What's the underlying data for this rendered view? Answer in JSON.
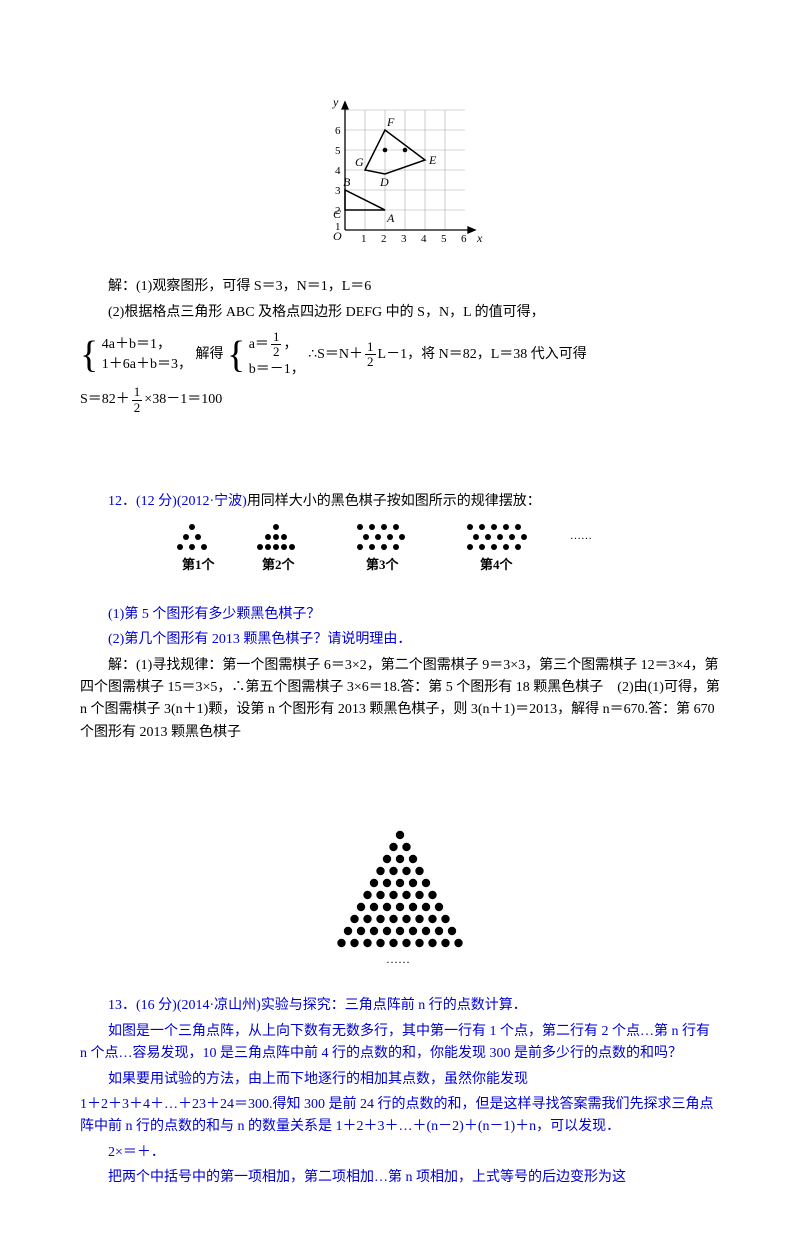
{
  "graph1": {
    "labels": {
      "y": "y",
      "x": "x",
      "O": "O",
      "A": "A",
      "B": "B",
      "C": "C",
      "D": "D",
      "E": "E",
      "F": "F",
      "G": "G"
    },
    "xticks": [
      "1",
      "2",
      "3",
      "4",
      "5",
      "6"
    ],
    "yticks": [
      "1",
      "2",
      "3",
      "4",
      "5",
      "6"
    ],
    "triangle": [
      [
        0,
        2
      ],
      [
        0,
        1
      ],
      [
        2,
        1
      ]
    ],
    "quad": [
      [
        1,
        3
      ],
      [
        2,
        5
      ],
      [
        4,
        3.5
      ],
      [
        2,
        2.8
      ]
    ],
    "dots": [
      [
        2,
        4
      ],
      [
        3,
        4
      ]
    ],
    "line_color": "#000000",
    "grid_color": "#aaaaaa",
    "bg": "#ffffff"
  },
  "sol1": {
    "line1": "解：(1)观察图形，可得 S＝3，N＝1，L＝6",
    "line2": "(2)根据格点三角形 ABC 及格点四边形 DEFG 中的 S，N，L 的值可得，",
    "sys1_l1": "4a＋b＝1，",
    "sys1_l2": "1＋6a＋b＝3，",
    "solve_word": "解得",
    "sys2_l1": "a＝",
    "sys2_l2": "b＝－1，",
    "comma": "，",
    "therefore": "∴S＝N＋",
    "tail1": "L－1，将 N＝82，L＝38 代入可得",
    "final": "S＝82＋",
    "final_tail": "×38－1＝100",
    "half_num": "1",
    "half_den": "2"
  },
  "problem12": {
    "header": "12．(12 分)(2012·宁波)",
    "header_tail": "用同样大小的黑色棋子按如图所示的规律摆放：",
    "labels": [
      "第1个",
      "第2个",
      "第3个",
      "第4个"
    ],
    "ellipsis": "……",
    "q1": "(1)第 5 个图形有多少颗黑色棋子？",
    "q2": "(2)第几个图形有 2013 颗黑色棋子？请说明理由．",
    "ans": "解：(1)寻找规律：第一个图需棋子 6＝3×2，第二个图需棋子 9＝3×3，第三个图需棋子 12＝3×4，第四个图需棋子 15＝3×5，∴第五个图需棋子 3×6＝18.答：第 5 个图形有 18 颗黑色棋子　(2)由(1)可得，第 n 个图需棋子 3(n＋1)颗，设第 n 个图形有 2013 颗黑色棋子，则 3(n＋1)＝2013，解得 n＝670.答：第 670 个图形有 2013 颗黑色棋子",
    "dot_color": "#000000"
  },
  "problem13": {
    "header": "13．(16 分)(2014·凉山州)",
    "header_tail": "实验与探究：三角点阵前 n 行的点数计算．",
    "p1": "如图是一个三角点阵，从上向下数有无数多行，其中第一行有 1 个点，第二行有 2 个点…第 n 行有 n 个点…容易发现，10 是三角点阵中前 4 行的点数的和，你能发现 300 是前多少行的点数的和吗？",
    "p2": "如果要用试验的方法，由上而下地逐行的相加其点数，虽然你能发现",
    "p3": "1＋2＋3＋4＋…＋23＋24＝300.得知 300 是前 24 行的点数的和，但是这样寻找答案需我们先探求三角点阵中前 n 行的点数的和与 n 的数量关系是 1＋2＋3＋…＋(n－2)＋(n－1)＋n，可以发现．",
    "p4": "2×＝＋．",
    "p5": "把两个中括号中的第一项相加，第二项相加…第 n 项相加，上式等号的后边变形为这",
    "dot_color": "#000000",
    "rows": 10,
    "ellipsis": "……"
  }
}
